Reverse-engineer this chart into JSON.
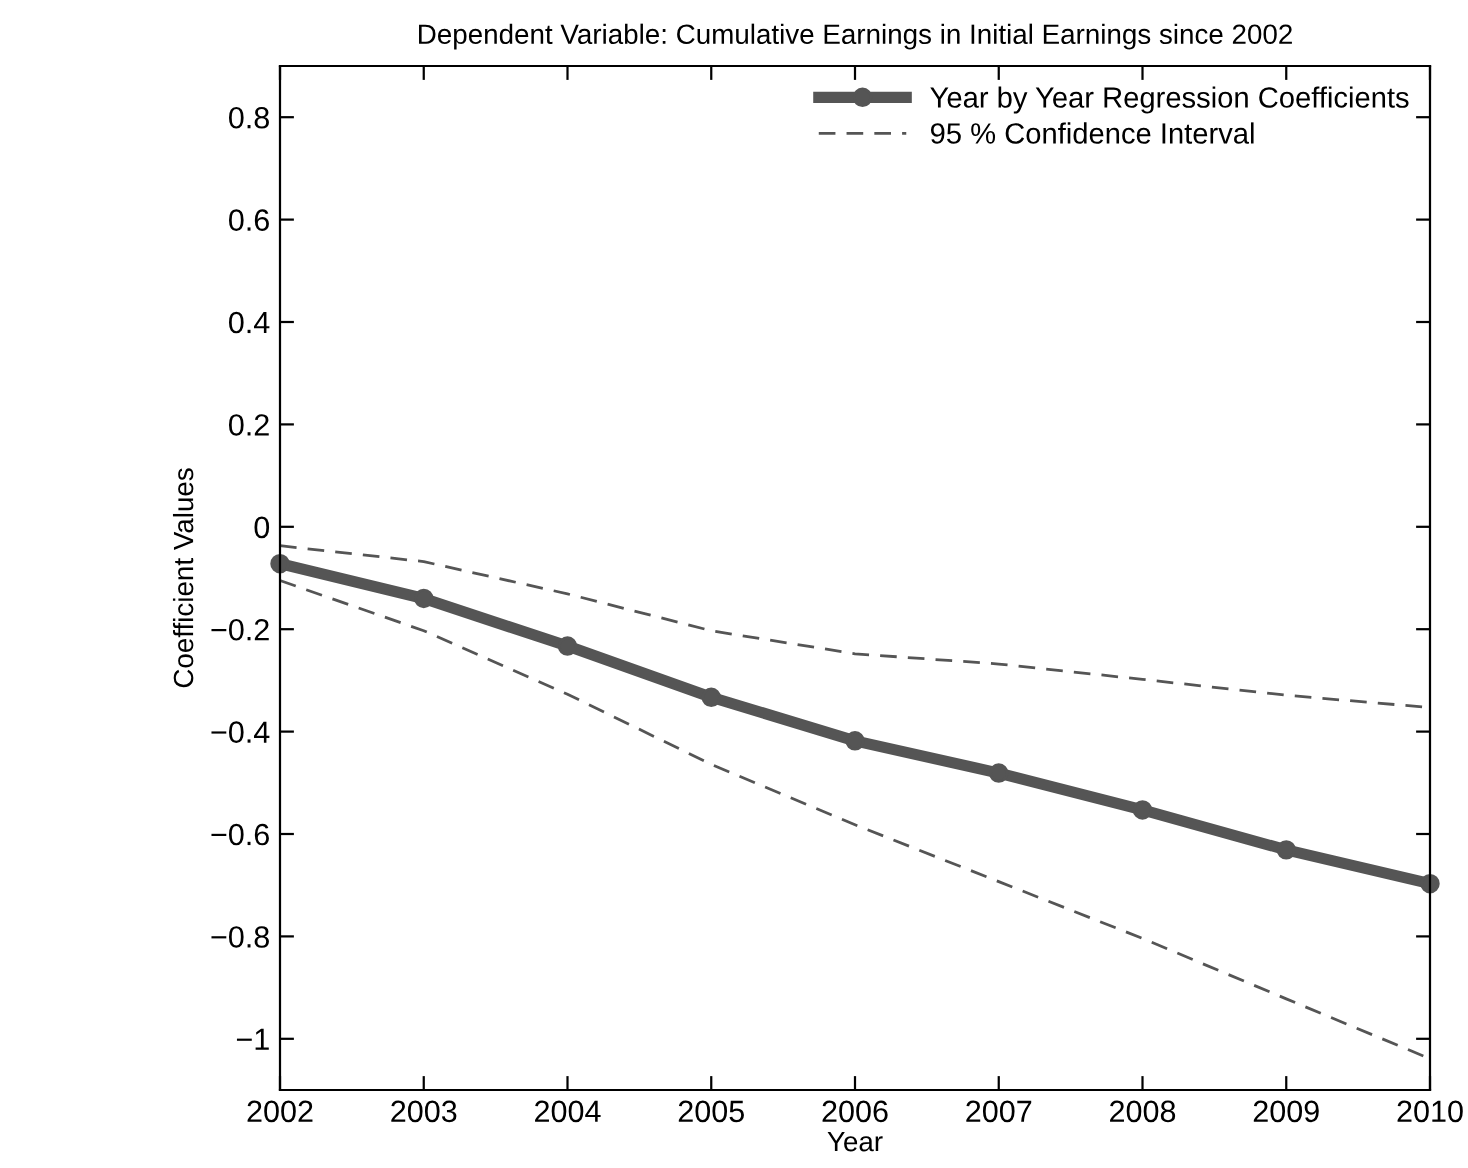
{
  "chart_data": {
    "type": "line",
    "title": "Dependent Variable: Cumulative Earnings in Initial Earnings since 2002",
    "xlabel": "Year",
    "ylabel": "Coefficient Values",
    "x": [
      2002,
      2003,
      2004,
      2005,
      2006,
      2007,
      2008,
      2009,
      2010
    ],
    "series": [
      {
        "name": "Year by Year Regression Coefficients",
        "color": "#555555",
        "marker": "circle",
        "line_style": "solid",
        "values": [
          -0.072,
          -0.14,
          -0.233,
          -0.333,
          -0.418,
          -0.481,
          -0.553,
          -0.631,
          -0.697
        ]
      },
      {
        "name": "95 % Confidence Interval",
        "color": "#555555",
        "marker": "none",
        "line_style": "dashed",
        "values": [
          -0.037,
          -0.068,
          -0.131,
          -0.203,
          -0.248,
          -0.268,
          -0.298,
          -0.329,
          -0.353
        ]
      },
      {
        "color": "#555555",
        "marker": "none",
        "line_style": "dashed",
        "values": [
          -0.105,
          -0.203,
          -0.327,
          -0.464,
          -0.582,
          -0.693,
          -0.804,
          -0.922,
          -1.039
        ]
      }
    ],
    "xlim": [
      2002,
      2010
    ],
    "xticks": [
      2002,
      2003,
      2004,
      2005,
      2006,
      2007,
      2008,
      2009,
      2010
    ],
    "ylim": [
      -1.1,
      0.9
    ],
    "yticks": [
      {
        "value": -1,
        "label": "−1"
      },
      {
        "value": -0.8,
        "label": "−0.8"
      },
      {
        "value": -0.6,
        "label": "−0.6"
      },
      {
        "value": -0.4,
        "label": "−0.4"
      },
      {
        "value": -0.2,
        "label": "−0.2"
      },
      0,
      0.2,
      0.4,
      0.6,
      0.8
    ],
    "grid": false,
    "legend": "top right"
  }
}
